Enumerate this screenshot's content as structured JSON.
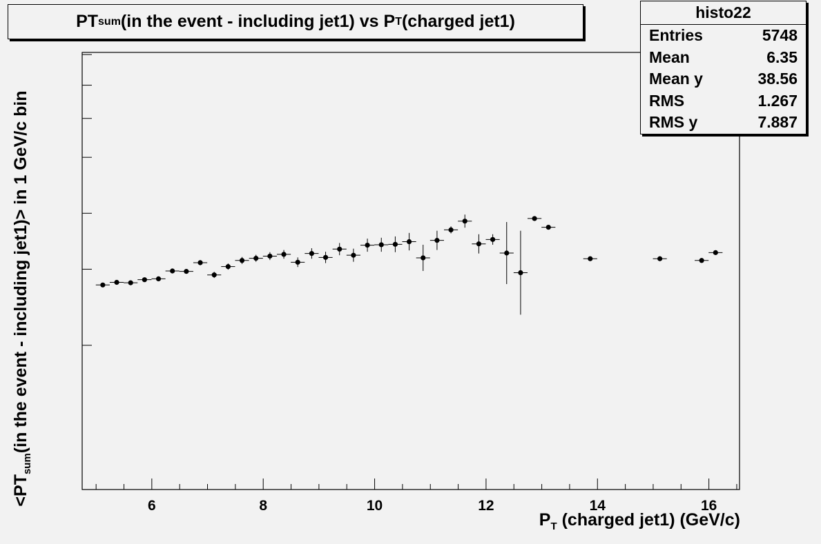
{
  "title": {
    "pre": "PT",
    "sub": "sum",
    "mid": "(in the event - including jet1) vs P",
    "sub2": "T",
    "post": "(charged jet1)"
  },
  "stats": {
    "name": "histo22",
    "rows": [
      {
        "label": "Entries",
        "value": "5748"
      },
      {
        "label": "Mean",
        "value": "6.35"
      },
      {
        "label": "Mean y",
        "value": "38.56"
      },
      {
        "label": "RMS",
        "value": "1.267"
      },
      {
        "label": "RMS y",
        "value": "7.887"
      }
    ]
  },
  "xlabel": {
    "pre": "P",
    "sub": "T",
    "post": " (charged jet1) (GeV/c)"
  },
  "ylabel": {
    "pre": "<PT",
    "sub": "sum",
    "post": "(in the event - including jet1)> in 1 GeV/c bin"
  },
  "chart_data": {
    "type": "scatter",
    "xlim": [
      4.75,
      16.55
    ],
    "ylim": [
      0,
      1
    ],
    "xticks": [
      6,
      8,
      10,
      12,
      14,
      16
    ],
    "grid": false,
    "points": [
      {
        "x": 5.12,
        "y": 0.468,
        "err": 0.004
      },
      {
        "x": 5.37,
        "y": 0.474,
        "err": 0.004
      },
      {
        "x": 5.62,
        "y": 0.473,
        "err": 0.004
      },
      {
        "x": 5.87,
        "y": 0.48,
        "err": 0.004
      },
      {
        "x": 6.12,
        "y": 0.482,
        "err": 0.005
      },
      {
        "x": 6.37,
        "y": 0.5,
        "err": 0.005
      },
      {
        "x": 6.62,
        "y": 0.499,
        "err": 0.005
      },
      {
        "x": 6.87,
        "y": 0.519,
        "err": 0.006
      },
      {
        "x": 7.12,
        "y": 0.491,
        "err": 0.007
      },
      {
        "x": 7.37,
        "y": 0.51,
        "err": 0.007
      },
      {
        "x": 7.62,
        "y": 0.524,
        "err": 0.008
      },
      {
        "x": 7.87,
        "y": 0.529,
        "err": 0.008
      },
      {
        "x": 8.12,
        "y": 0.534,
        "err": 0.009
      },
      {
        "x": 8.37,
        "y": 0.538,
        "err": 0.01
      },
      {
        "x": 8.62,
        "y": 0.52,
        "err": 0.011
      },
      {
        "x": 8.87,
        "y": 0.54,
        "err": 0.012
      },
      {
        "x": 9.12,
        "y": 0.531,
        "err": 0.013
      },
      {
        "x": 9.37,
        "y": 0.55,
        "err": 0.014
      },
      {
        "x": 9.62,
        "y": 0.536,
        "err": 0.015
      },
      {
        "x": 9.87,
        "y": 0.559,
        "err": 0.015
      },
      {
        "x": 10.12,
        "y": 0.56,
        "err": 0.016
      },
      {
        "x": 10.37,
        "y": 0.561,
        "err": 0.018
      },
      {
        "x": 10.62,
        "y": 0.567,
        "err": 0.02
      },
      {
        "x": 10.87,
        "y": 0.53,
        "err": 0.03
      },
      {
        "x": 11.12,
        "y": 0.57,
        "err": 0.022
      },
      {
        "x": 11.37,
        "y": 0.594,
        "err": 0.008
      },
      {
        "x": 11.62,
        "y": 0.614,
        "err": 0.015
      },
      {
        "x": 11.87,
        "y": 0.562,
        "err": 0.022
      },
      {
        "x": 12.12,
        "y": 0.572,
        "err": 0.012
      },
      {
        "x": 12.37,
        "y": 0.541,
        "err": 0.071
      },
      {
        "x": 12.62,
        "y": 0.496,
        "err": 0.096
      },
      {
        "x": 12.87,
        "y": 0.62,
        "err": 0.005
      },
      {
        "x": 13.12,
        "y": 0.6,
        "err": 0.002
      },
      {
        "x": 13.87,
        "y": 0.528,
        "err": 0.002
      },
      {
        "x": 15.12,
        "y": 0.528,
        "err": 0.002
      },
      {
        "x": 15.87,
        "y": 0.524,
        "err": 0.002
      },
      {
        "x": 16.12,
        "y": 0.542,
        "err": 0.003
      }
    ]
  }
}
